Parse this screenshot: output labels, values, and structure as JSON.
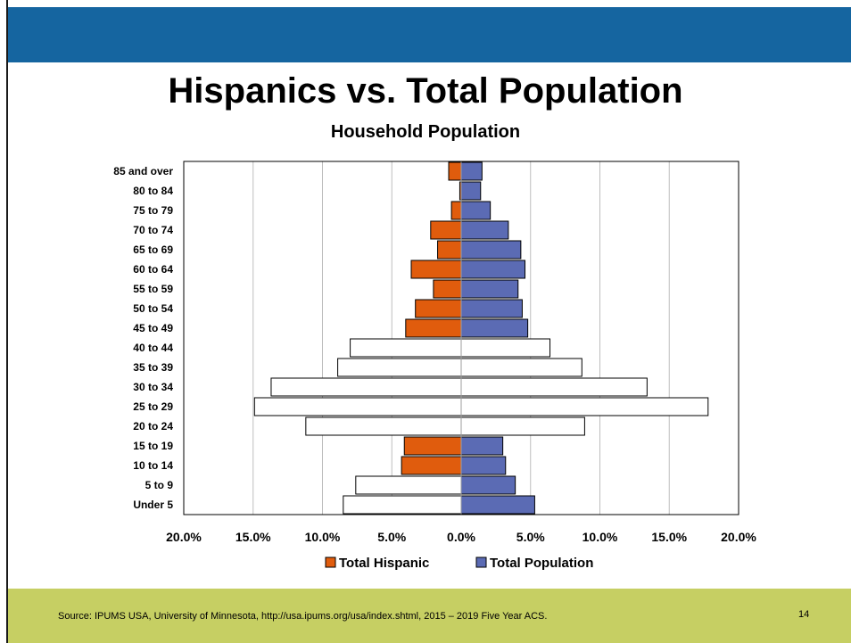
{
  "slide": {
    "title": "Hispanics vs. Total Population",
    "source": "Source: IPUMS USA, University of Minnesota, http://usa.ipums.org/usa/index.shtml, 2015 – 2019 Five Year ACS.",
    "page_number": "14"
  },
  "colors": {
    "top_band": "#1565a0",
    "footer_band": "#c6cf63",
    "hispanic": "#e05c0d",
    "total": "#5b6bb4"
  },
  "chart_data": {
    "type": "bar",
    "orientation": "horizontal",
    "subtype": "population-pyramid",
    "title": "Household Population",
    "categories": [
      "85 and over",
      "80 to 84",
      "75 to 79",
      "70 to 74",
      "65 to 69",
      "60 to 64",
      "55 to 59",
      "50 to 54",
      "45 to 49",
      "40 to 44",
      "35 to 39",
      "30 to 34",
      "25 to 29",
      "20 to 24",
      "15 to 19",
      "10 to 14",
      "5 to 9",
      "Under 5"
    ],
    "xlim": [
      -20,
      20
    ],
    "x_ticks": [
      -20,
      -15,
      -10,
      -5,
      0,
      5,
      10,
      15,
      20
    ],
    "x_tick_labels": [
      "20.0%",
      "15.0%",
      "10.0%",
      "5.0%",
      "0.0%",
      "5.0%",
      "10.0%",
      "15.0%",
      "20.0%"
    ],
    "grid": "vertical",
    "legend": "bottom",
    "series": [
      {
        "name": "Total Hispanic",
        "side": "left",
        "color": "#e05c0d",
        "values": [
          0.9,
          0.1,
          0.7,
          2.2,
          1.7,
          3.6,
          2.0,
          3.3,
          4.0,
          8.0,
          8.9,
          13.7,
          14.9,
          11.2,
          4.1,
          4.3,
          7.6,
          8.5
        ]
      },
      {
        "name": "Total Population",
        "side": "right",
        "color": "#5b6bb4",
        "values": [
          1.5,
          1.4,
          2.1,
          3.4,
          4.3,
          4.6,
          4.1,
          4.4,
          4.8,
          6.4,
          8.7,
          13.4,
          17.8,
          8.9,
          3.0,
          3.2,
          3.9,
          5.3
        ]
      }
    ],
    "unfilled_rows": [
      "40 to 44",
      "35 to 39",
      "30 to 34",
      "25 to 29",
      "20 to 24",
      "5 to 9",
      "Under 5"
    ],
    "partly_filled_rows": [
      "5 to 9",
      "Under 5"
    ]
  }
}
